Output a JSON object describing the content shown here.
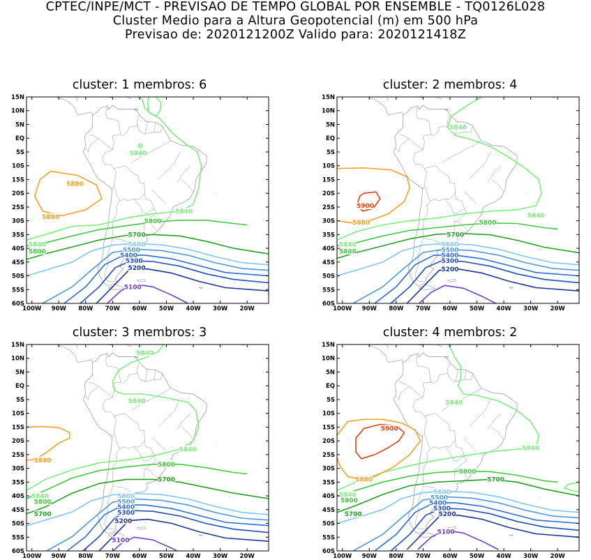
{
  "header": {
    "line1": "CPTEC/INPE/MCT - PREVISAO DE TEMPO GLOBAL POR ENSEMBLE - TQ0126L028",
    "line2": "Cluster Medio para a Altura Geopotencial (m) em 500 hPa",
    "line3": "Previsao de: 2020121200Z    Valido para: 2020121418Z"
  },
  "axes": {
    "lat_labels": [
      "15N",
      "10N",
      "5N",
      "EQ",
      "5S",
      "10S",
      "15S",
      "20S",
      "25S",
      "30S",
      "35S",
      "40S",
      "45S",
      "50S",
      "55S",
      "60S"
    ],
    "lon_labels": [
      "100W",
      "90W",
      "80W",
      "70W",
      "60W",
      "50W",
      "40W",
      "30W",
      "20W"
    ]
  },
  "colors": {
    "c5840": "#7ced7c",
    "c5800": "#3fc83f",
    "c5700": "#20a020",
    "c5600": "#80c4f4",
    "c5500": "#4a96e2",
    "c5400": "#2a6ad2",
    "c5300": "#1c4cb6",
    "c5200": "#1a3296",
    "c5100": "#6a3cc8",
    "c5880": "#f4a020",
    "c5900": "#e83c10",
    "coast": "#909090"
  },
  "panels": [
    {
      "title": "cluster: 1   membros: 6",
      "labels": [
        {
          "text": "5840",
          "lon": -60.5,
          "lat": -5.3,
          "color": "c5840"
        },
        {
          "text": "5880",
          "lon": -84,
          "lat": -16.5,
          "color": "c5880"
        },
        {
          "text": "5880",
          "lon": -93,
          "lat": -28.5,
          "color": "c5880"
        },
        {
          "text": "5840",
          "lon": -43.5,
          "lat": -26.5,
          "color": "c5840"
        },
        {
          "text": "5800",
          "lon": -55,
          "lat": -30,
          "color": "c5800"
        },
        {
          "text": "5840",
          "lon": -98,
          "lat": -38.5,
          "color": "c5840"
        },
        {
          "text": "5800",
          "lon": -98,
          "lat": -41,
          "color": "c5800"
        },
        {
          "text": "5700",
          "lon": -61,
          "lat": -35,
          "color": "c5700"
        },
        {
          "text": "5600",
          "lon": -61,
          "lat": -38.5,
          "color": "c5600"
        },
        {
          "text": "5500",
          "lon": -63,
          "lat": -40.5,
          "color": "c5500"
        },
        {
          "text": "5400",
          "lon": -64,
          "lat": -42.5,
          "color": "c5400"
        },
        {
          "text": "5300",
          "lon": -62,
          "lat": -44.5,
          "color": "c5300"
        },
        {
          "text": "5200",
          "lon": -61,
          "lat": -47,
          "color": "c5200"
        },
        {
          "text": "5100",
          "lon": -62.5,
          "lat": -54,
          "color": "c5100"
        }
      ]
    },
    {
      "title": "cluster: 2   membros: 4",
      "labels": [
        {
          "text": "5840",
          "lon": -57,
          "lat": 4,
          "color": "c5840"
        },
        {
          "text": "5900",
          "lon": -91.5,
          "lat": -24.5,
          "color": "c5900"
        },
        {
          "text": "5880",
          "lon": -93,
          "lat": -30.5,
          "color": "c5880"
        },
        {
          "text": "5840",
          "lon": -28,
          "lat": -28,
          "color": "c5840"
        },
        {
          "text": "5800",
          "lon": -46,
          "lat": -30.5,
          "color": "c5800"
        },
        {
          "text": "5840",
          "lon": -98,
          "lat": -38.5,
          "color": "c5840"
        },
        {
          "text": "5800",
          "lon": -98,
          "lat": -41,
          "color": "c5800"
        },
        {
          "text": "5700",
          "lon": -58,
          "lat": -35,
          "color": "c5700"
        },
        {
          "text": "5600",
          "lon": -60,
          "lat": -38.5,
          "color": "c5600"
        },
        {
          "text": "5500",
          "lon": -60,
          "lat": -40.5,
          "color": "c5500"
        },
        {
          "text": "5400",
          "lon": -60,
          "lat": -42.5,
          "color": "c5400"
        },
        {
          "text": "5300",
          "lon": -60,
          "lat": -44.5,
          "color": "c5300"
        },
        {
          "text": "5200",
          "lon": -60,
          "lat": -47.5,
          "color": "c5200"
        }
      ]
    },
    {
      "title": "cluster: 3   membros: 3",
      "labels": [
        {
          "text": "5840",
          "lon": -58,
          "lat": 12,
          "color": "c5840"
        },
        {
          "text": "5840",
          "lon": -61,
          "lat": -5.5,
          "color": "c5840"
        },
        {
          "text": "5880",
          "lon": -96,
          "lat": -27,
          "color": "c5880"
        },
        {
          "text": "5840",
          "lon": -42,
          "lat": -23,
          "color": "c5840"
        },
        {
          "text": "5800",
          "lon": -50,
          "lat": -28.5,
          "color": "c5800"
        },
        {
          "text": "5840",
          "lon": -97,
          "lat": -40,
          "color": "c5840"
        },
        {
          "text": "5800",
          "lon": -96,
          "lat": -42,
          "color": "c5800"
        },
        {
          "text": "5700",
          "lon": -50,
          "lat": -34,
          "color": "c5700"
        },
        {
          "text": "5700",
          "lon": -96,
          "lat": -46.5,
          "color": "c5700"
        },
        {
          "text": "5600",
          "lon": -65,
          "lat": -40,
          "color": "c5600"
        },
        {
          "text": "5500",
          "lon": -65,
          "lat": -42,
          "color": "c5500"
        },
        {
          "text": "5400",
          "lon": -65,
          "lat": -44,
          "color": "c5400"
        },
        {
          "text": "5300",
          "lon": -65,
          "lat": -46,
          "color": "c5300"
        },
        {
          "text": "5200",
          "lon": -66,
          "lat": -49,
          "color": "c5200"
        },
        {
          "text": "5100",
          "lon": -67,
          "lat": -56,
          "color": "c5100"
        }
      ]
    },
    {
      "title": "cluster: 4   membros: 2",
      "labels": [
        {
          "text": "5840",
          "lon": -58.5,
          "lat": -6,
          "color": "c5840"
        },
        {
          "text": "5900",
          "lon": -82.5,
          "lat": -15.5,
          "color": "c5900"
        },
        {
          "text": "5880",
          "lon": -92,
          "lat": -34,
          "color": "c5880"
        },
        {
          "text": "5840",
          "lon": -30,
          "lat": -22.5,
          "color": "c5840"
        },
        {
          "text": "5800",
          "lon": -53.5,
          "lat": -31,
          "color": "c5800"
        },
        {
          "text": "5840",
          "lon": -98,
          "lat": -39.5,
          "color": "c5840"
        },
        {
          "text": "5800",
          "lon": -97.5,
          "lat": -41.5,
          "color": "c5800"
        },
        {
          "text": "5700",
          "lon": -43,
          "lat": -34,
          "color": "c5700"
        },
        {
          "text": "5700",
          "lon": -96,
          "lat": -46.5,
          "color": "c5700"
        },
        {
          "text": "5600",
          "lon": -63,
          "lat": -38.5,
          "color": "c5600"
        },
        {
          "text": "5500",
          "lon": -64,
          "lat": -40.5,
          "color": "c5500"
        },
        {
          "text": "5400",
          "lon": -64.5,
          "lat": -42.5,
          "color": "c5400"
        },
        {
          "text": "5300",
          "lon": -63,
          "lat": -44.5,
          "color": "c5300"
        },
        {
          "text": "5200",
          "lon": -61,
          "lat": -46.5,
          "color": "c5200"
        },
        {
          "text": "5100",
          "lon": -61.5,
          "lat": -53,
          "color": "c5100"
        }
      ]
    }
  ]
}
